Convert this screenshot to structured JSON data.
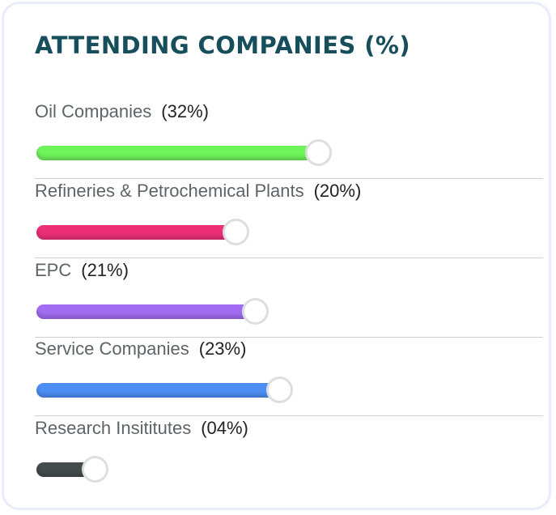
{
  "title": "ATTENDING COMPANIES (%)",
  "chart_data": {
    "type": "bar",
    "categories": [
      "Oil Companies",
      "Refineries & Petrochemical Plants",
      "EPC",
      "Service Companies",
      "Research Insititutes"
    ],
    "values": [
      32,
      20,
      21,
      23,
      4
    ],
    "value_labels": [
      "(32%)",
      "(20%)",
      "(21%)",
      "(23%)",
      "(04%)"
    ],
    "colors": [
      "#6ef55a",
      "#ec2f77",
      "#a16cf2",
      "#4d8ef5",
      "#444b4c"
    ],
    "bar_fractions": [
      0.58,
      0.41,
      0.45,
      0.5,
      0.12
    ]
  }
}
